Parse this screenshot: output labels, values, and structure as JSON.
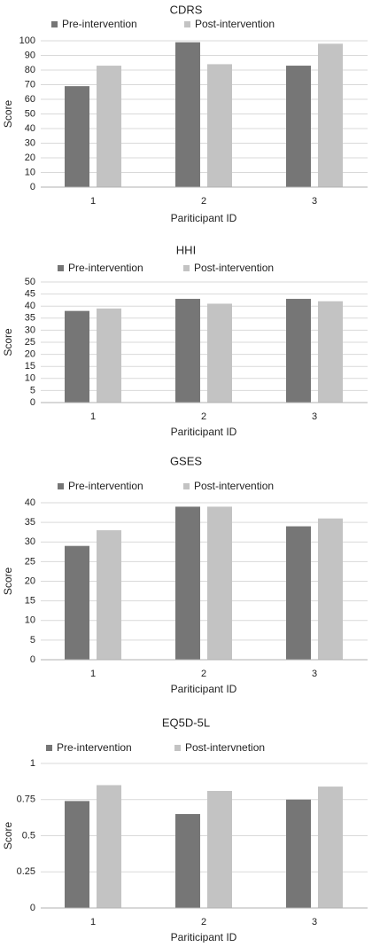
{
  "colors": {
    "pre": "#767676",
    "post": "#c3c3c3",
    "grid": "#d9d9d9",
    "axis": "#b0b0b0"
  },
  "chart_data": [
    {
      "type": "bar",
      "title": "CDRS",
      "xlabel": "Pariticipant ID",
      "ylabel": "Score",
      "categories": [
        "1",
        "2",
        "3"
      ],
      "yticks": [
        "0",
        "10",
        "20",
        "30",
        "40",
        "50",
        "60",
        "70",
        "80",
        "90",
        "100"
      ],
      "ylim": [
        0,
        100
      ],
      "grid": true,
      "legend_position": "top",
      "series": [
        {
          "name": "Pre-intervention",
          "values": [
            69,
            99,
            83
          ]
        },
        {
          "name": "Post-intervention",
          "values": [
            83,
            84,
            98
          ]
        }
      ]
    },
    {
      "type": "bar",
      "title": "HHI",
      "xlabel": "Pariticipant ID",
      "ylabel": "Score",
      "categories": [
        "1",
        "2",
        "3"
      ],
      "yticks": [
        "0",
        "5",
        "10",
        "15",
        "20",
        "25",
        "30",
        "35",
        "40",
        "45",
        "50"
      ],
      "ylim": [
        0,
        50
      ],
      "grid": true,
      "legend_position": "top",
      "series": [
        {
          "name": "Pre-intervention",
          "values": [
            38,
            43,
            43
          ]
        },
        {
          "name": "Post-intervention",
          "values": [
            39,
            41,
            42
          ]
        }
      ]
    },
    {
      "type": "bar",
      "title": "GSES",
      "xlabel": "Pariticipant ID",
      "ylabel": "Score",
      "categories": [
        "1",
        "2",
        "3"
      ],
      "yticks": [
        "0",
        "5",
        "10",
        "15",
        "20",
        "25",
        "30",
        "35",
        "40"
      ],
      "ylim": [
        0,
        40
      ],
      "grid": true,
      "legend_position": "top",
      "series": [
        {
          "name": "Pre-intervention",
          "values": [
            29,
            39,
            34
          ]
        },
        {
          "name": "Post-intervention",
          "values": [
            33,
            39,
            36
          ]
        }
      ]
    },
    {
      "type": "bar",
      "title": "EQ5D-5L",
      "xlabel": "Pariticipant ID",
      "ylabel": "Score",
      "categories": [
        "1",
        "2",
        "3"
      ],
      "yticks": [
        "0",
        "0.25",
        "0.5",
        "0.75",
        "1"
      ],
      "ylim": [
        0,
        1
      ],
      "grid": true,
      "legend_position": "top",
      "series": [
        {
          "name": "Pre-intervention",
          "values": [
            0.74,
            0.65,
            0.75
          ]
        },
        {
          "name": "Post-intervnetion",
          "values": [
            0.85,
            0.81,
            0.84
          ]
        }
      ]
    }
  ]
}
